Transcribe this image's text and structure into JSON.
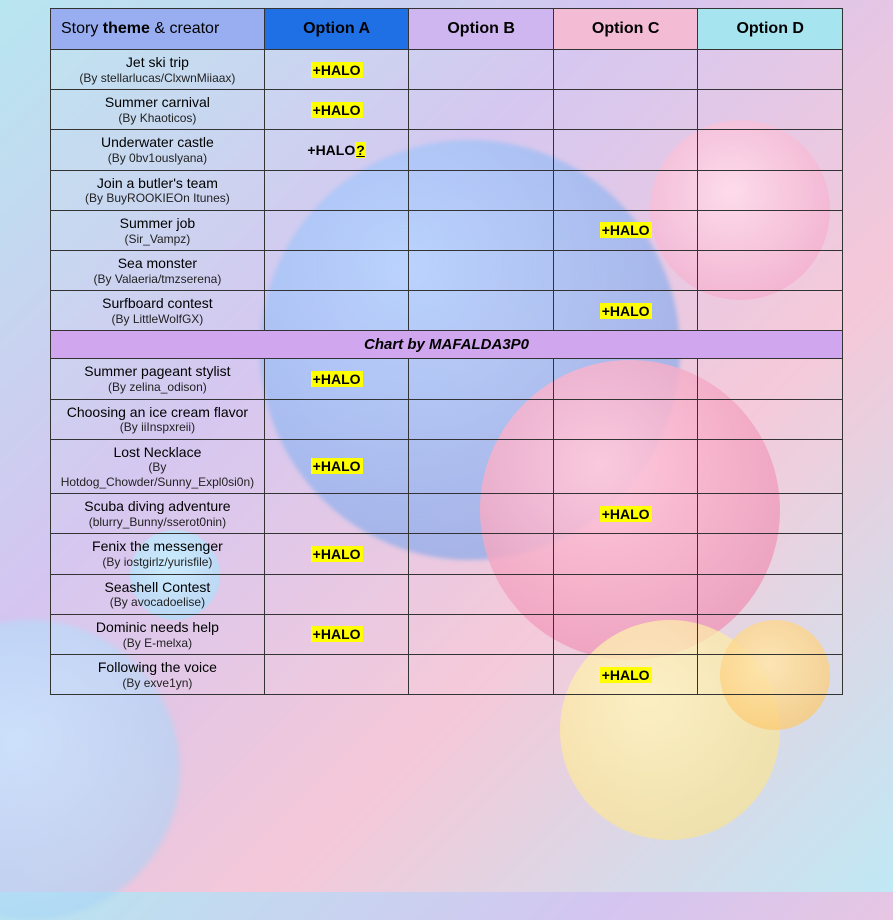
{
  "header": {
    "story_label_prefix": "Story ",
    "story_label_bold": "theme",
    "story_label_suffix": " & creator",
    "optA": "Option A",
    "optB": "Option B",
    "optC": "Option C",
    "optD": "Option D"
  },
  "colors": {
    "hdr_story": "#98aef0",
    "hdr_optA": "#1f6fe5",
    "hdr_optB": "#cfb6f0",
    "hdr_optC": "#f3bcd4",
    "hdr_optD": "#a6e4f0",
    "credit_bg": "#d0a6ee",
    "halo_bg": "#ffff00",
    "border": "#333333"
  },
  "halo_label": "+HALO",
  "halo_uncertain_prefix": "+HALO",
  "halo_uncertain_mark": "?",
  "credit_text": "Chart by MAFALDA3P0",
  "rows_top": [
    {
      "title": "Jet ski trip",
      "creator": "(By stellarlucas/ClxwnMiiaax)",
      "A": "halo"
    },
    {
      "title": "Summer carnival",
      "creator": "(By Khaoticos)",
      "A": "halo"
    },
    {
      "title": "Underwater castle",
      "creator": "(By 0bv1ouslyana)",
      "A": "halo?"
    },
    {
      "title": "Join a butler's team",
      "creator": "(By BuyROOKIEOn Itunes)"
    },
    {
      "title": "Summer job",
      "creator": "(Sir_Vampz)",
      "C": "halo"
    },
    {
      "title": "Sea monster",
      "creator": "(By Valaeria/tmzserena)"
    },
    {
      "title": "Surfboard contest",
      "creator": "(By LittleWolfGX)",
      "C": "halo"
    }
  ],
  "rows_bottom": [
    {
      "title": "Summer pageant stylist",
      "creator": "(By zelina_odison)",
      "A": "halo"
    },
    {
      "title": "Choosing an ice cream flavor",
      "creator": "(By iiInspxreii)"
    },
    {
      "title": "Lost Necklace",
      "creator": "(By Hotdog_Chowder/Sunny_Expl0si0n)",
      "A": "halo"
    },
    {
      "title": "Scuba diving adventure",
      "creator": "(blurry_Bunny/sserot0nin)",
      "C": "halo"
    },
    {
      "title": "Fenix the messenger",
      "creator": "(By iostgirlz/yurisfile)",
      "A": "halo"
    },
    {
      "title": "Seashell Contest",
      "creator": "(By avocadoelise)"
    },
    {
      "title": "Dominic needs help",
      "creator": "(By E-melxa)",
      "A": "halo"
    },
    {
      "title": "Following the voice",
      "creator": "(By exve1yn)",
      "C": "halo"
    }
  ]
}
